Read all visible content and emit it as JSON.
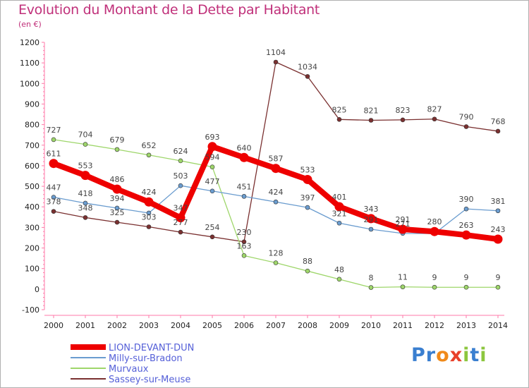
{
  "title": "Evolution du Montant de la Dette par Habitant",
  "subtitle": "(en €)",
  "logo": {
    "letters": [
      "P",
      "r",
      "o",
      "x",
      "i",
      "t",
      "i"
    ],
    "colors": [
      "#3a7fd0",
      "#3a7fd0",
      "#f08a1a",
      "#e8402a",
      "#8cc63e",
      "#3a7fd0",
      "#8cc63e"
    ]
  },
  "colors": {
    "LION-DEVANT-DUN": "#ee0000",
    "Milly-sur-Bradon": "#6a9ccf",
    "Murvaux": "#9ed66a",
    "Sassey-sur-Meuse": "#7a3030"
  },
  "chart_data": {
    "type": "line",
    "title": "Evolution du Montant de la Dette par Habitant",
    "subtitle": "(en €)",
    "x": [
      "2000",
      "2001",
      "2002",
      "2003",
      "2004",
      "2005",
      "2006",
      "2007",
      "2008",
      "2009",
      "2010",
      "2011",
      "2012",
      "2013",
      "2014"
    ],
    "ylim": [
      -100,
      1200
    ],
    "yticks": [
      "-100",
      "0",
      "100",
      "200",
      "300",
      "400",
      "500",
      "600",
      "700",
      "800",
      "900",
      "1000",
      "1100",
      "1200"
    ],
    "grid": false,
    "legend": "bottom-left",
    "series": [
      {
        "name": "LION-DEVANT-DUN",
        "values": [
          611,
          553,
          486,
          424,
          347,
          693,
          640,
          587,
          533,
          401,
          343,
          291,
          280,
          263,
          243
        ],
        "labels": [
          "611",
          "553",
          "486",
          "424",
          "347",
          "693",
          "640",
          "587",
          "533",
          "401",
          "343",
          "291",
          "280",
          "263",
          "243"
        ],
        "label_visible": [
          true,
          true,
          true,
          true,
          true,
          true,
          true,
          true,
          true,
          true,
          true,
          true,
          true,
          true,
          true
        ]
      },
      {
        "name": "Milly-sur-Bradon",
        "values": [
          447,
          418,
          394,
          370,
          503,
          477,
          451,
          424,
          397,
          321,
          291,
          271,
          270,
          390,
          381
        ],
        "labels": [
          "447",
          "418",
          "394",
          "370",
          "503",
          "477",
          "451",
          "424",
          "397",
          "321",
          "291",
          "271",
          "270",
          "390",
          "381"
        ],
        "label_visible": [
          true,
          true,
          true,
          false,
          true,
          true,
          true,
          true,
          true,
          true,
          true,
          true,
          false,
          true,
          true
        ]
      },
      {
        "name": "Murvaux",
        "values": [
          727,
          704,
          679,
          652,
          624,
          594,
          163,
          128,
          88,
          48,
          8,
          11,
          9,
          9,
          9
        ],
        "labels": [
          "727",
          "704",
          "679",
          "652",
          "624",
          "594",
          "163",
          "128",
          "88",
          "48",
          "8",
          "11",
          "9",
          "9",
          "9"
        ],
        "label_visible": [
          true,
          true,
          true,
          true,
          true,
          true,
          true,
          true,
          true,
          true,
          true,
          true,
          true,
          true,
          true
        ]
      },
      {
        "name": "Sassey-sur-Meuse",
        "values": [
          378,
          348,
          325,
          303,
          277,
          254,
          230,
          1104,
          1034,
          825,
          821,
          823,
          827,
          790,
          768
        ],
        "labels": [
          "378",
          "348",
          "325",
          "303",
          "277",
          "254",
          "230",
          "1104",
          "1034",
          "825",
          "821",
          "823",
          "827",
          "790",
          "768"
        ],
        "label_visible": [
          true,
          true,
          true,
          true,
          true,
          true,
          true,
          true,
          true,
          true,
          true,
          true,
          true,
          true,
          true
        ]
      }
    ]
  }
}
